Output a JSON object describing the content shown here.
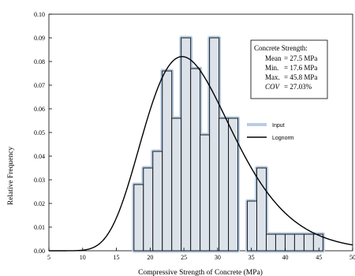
{
  "chart_data": {
    "type": "bar",
    "xlabel": "Compressive Strength of Concrete (MPa)",
    "ylabel": "Relative Frequency",
    "xlim": [
      5,
      50
    ],
    "ylim": [
      0,
      0.1
    ],
    "xticks": [
      5,
      10,
      15,
      20,
      25,
      30,
      35,
      40,
      45,
      50
    ],
    "yticks": [
      0,
      0.01,
      0.02,
      0.03,
      0.04,
      0.05,
      0.06,
      0.07,
      0.08,
      0.09,
      0.1
    ],
    "ytick_labels": [
      "0.00",
      "0.01",
      "0.02",
      "0.03",
      "0.04",
      "0.05",
      "0.06",
      "0.07",
      "0.08",
      "0.09",
      "0.10"
    ],
    "bin_width": 1.4,
    "bin_starts": [
      17.6,
      19.0,
      20.4,
      21.8,
      23.2,
      24.6,
      26.0,
      27.4,
      28.8,
      30.2,
      31.6,
      33.0,
      34.4,
      35.8,
      37.2,
      38.6,
      40.0,
      41.4,
      42.8,
      44.2
    ],
    "values": [
      0.028,
      0.035,
      0.042,
      0.076,
      0.056,
      0.09,
      0.077,
      0.049,
      0.09,
      0.056,
      0.056,
      0.0,
      0.021,
      0.035,
      0.007,
      0.007,
      0.007,
      0.007,
      0.007,
      0.007
    ],
    "series": [
      {
        "name": "Input",
        "type": "histogram",
        "color": "#b8cce4"
      },
      {
        "name": "Lognorm",
        "type": "line",
        "color": "#000000",
        "mean": 27.5,
        "cov": 0.2703
      }
    ],
    "annotation": {
      "title": "Concrete Strength:",
      "lines": [
        {
          "label": "Mean",
          "value": "= 27.5 MPa"
        },
        {
          "label": "Min.",
          "value": "= 17.6 MPa"
        },
        {
          "label": "Max.",
          "value": "= 45.8 MPa"
        },
        {
          "label": "COV",
          "value": "= 27.03%"
        }
      ]
    },
    "legend_position": "right",
    "grid": false
  }
}
